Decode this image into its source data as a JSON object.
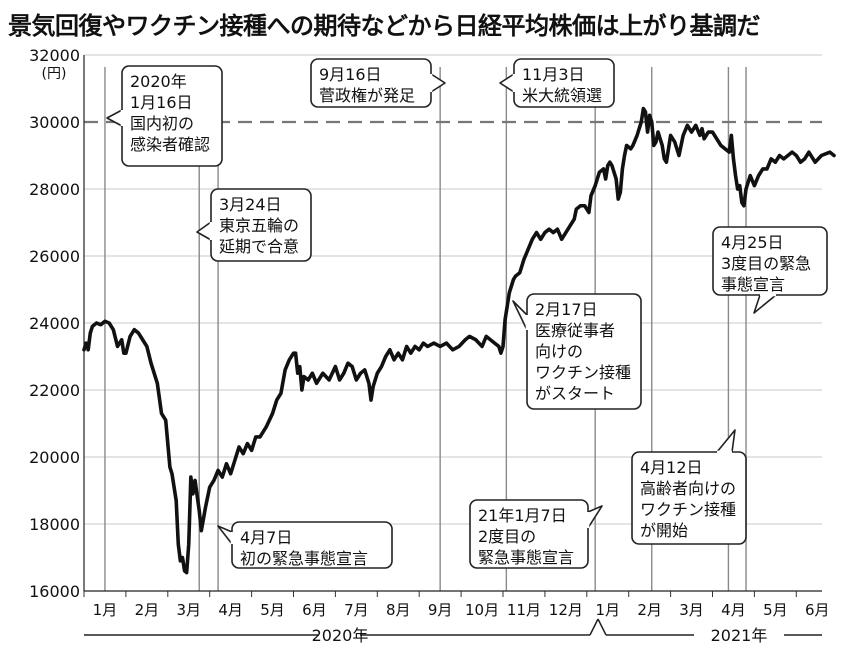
{
  "title": "景気回復やワクチン接種への期待などから日経平均株価は上がり基調だ",
  "chart_data": {
    "type": "line",
    "ylabel": "(円)",
    "ylim": [
      16000,
      32000
    ],
    "yticks": [
      16000,
      18000,
      20000,
      22000,
      24000,
      26000,
      28000,
      30000,
      32000
    ],
    "reference_line": 30000,
    "month_labels": [
      "1月",
      "2月",
      "3月",
      "4月",
      "5月",
      "6月",
      "7月",
      "8月",
      "9月",
      "10月",
      "11月",
      "12月",
      "1月",
      "2月",
      "3月",
      "4月",
      "5月",
      "6月"
    ],
    "year_labels": [
      "2020年",
      "2021年"
    ],
    "series": [
      {
        "values": [
          [
            0,
            23200
          ],
          [
            0.05,
            23400
          ],
          [
            0.1,
            23200
          ],
          [
            0.15,
            23700
          ],
          [
            0.2,
            23900
          ],
          [
            0.3,
            24000
          ],
          [
            0.4,
            23950
          ],
          [
            0.5,
            24050
          ],
          [
            0.6,
            24000
          ],
          [
            0.7,
            23800
          ],
          [
            0.8,
            23300
          ],
          [
            0.9,
            23500
          ],
          [
            0.95,
            23100
          ],
          [
            1.0,
            23100
          ],
          [
            1.1,
            23600
          ],
          [
            1.2,
            23800
          ],
          [
            1.3,
            23700
          ],
          [
            1.4,
            23500
          ],
          [
            1.5,
            23300
          ],
          [
            1.6,
            22800
          ],
          [
            1.75,
            22200
          ],
          [
            1.85,
            21300
          ],
          [
            1.95,
            21100
          ],
          [
            2.05,
            19700
          ],
          [
            2.1,
            19500
          ],
          [
            2.2,
            18700
          ],
          [
            2.25,
            17400
          ],
          [
            2.3,
            16900
          ],
          [
            2.35,
            17000
          ],
          [
            2.4,
            16600
          ],
          [
            2.45,
            16550
          ],
          [
            2.5,
            17400
          ],
          [
            2.55,
            19400
          ],
          [
            2.6,
            18900
          ],
          [
            2.65,
            19300
          ],
          [
            2.75,
            18400
          ],
          [
            2.8,
            17800
          ],
          [
            2.9,
            18500
          ],
          [
            3.0,
            19100
          ],
          [
            3.1,
            19300
          ],
          [
            3.2,
            19600
          ],
          [
            3.3,
            19400
          ],
          [
            3.4,
            19800
          ],
          [
            3.5,
            19500
          ],
          [
            3.6,
            19900
          ],
          [
            3.7,
            20300
          ],
          [
            3.8,
            20100
          ],
          [
            3.9,
            20400
          ],
          [
            4.0,
            20200
          ],
          [
            4.1,
            20600
          ],
          [
            4.2,
            20600
          ],
          [
            4.35,
            20900
          ],
          [
            4.5,
            21300
          ],
          [
            4.6,
            21700
          ],
          [
            4.7,
            21900
          ],
          [
            4.8,
            22600
          ],
          [
            4.9,
            22900
          ],
          [
            5.0,
            23100
          ],
          [
            5.05,
            23100
          ],
          [
            5.1,
            22500
          ],
          [
            5.15,
            22700
          ],
          [
            5.2,
            22000
          ],
          [
            5.25,
            22400
          ],
          [
            5.35,
            22300
          ],
          [
            5.45,
            22500
          ],
          [
            5.55,
            22200
          ],
          [
            5.7,
            22500
          ],
          [
            5.85,
            22300
          ],
          [
            6.0,
            22700
          ],
          [
            6.1,
            22300
          ],
          [
            6.2,
            22500
          ],
          [
            6.3,
            22800
          ],
          [
            6.4,
            22700
          ],
          [
            6.5,
            22300
          ],
          [
            6.6,
            22500
          ],
          [
            6.7,
            22600
          ],
          [
            6.8,
            22200
          ],
          [
            6.85,
            21700
          ],
          [
            6.9,
            22100
          ],
          [
            7.0,
            22500
          ],
          [
            7.1,
            22700
          ],
          [
            7.2,
            23000
          ],
          [
            7.3,
            23200
          ],
          [
            7.4,
            22900
          ],
          [
            7.5,
            23100
          ],
          [
            7.6,
            22900
          ],
          [
            7.7,
            23300
          ],
          [
            7.8,
            23100
          ],
          [
            7.9,
            23300
          ],
          [
            8.0,
            23200
          ],
          [
            8.1,
            23400
          ],
          [
            8.2,
            23300
          ],
          [
            8.35,
            23400
          ],
          [
            8.5,
            23300
          ],
          [
            8.65,
            23400
          ],
          [
            8.8,
            23200
          ],
          [
            8.95,
            23300
          ],
          [
            9.1,
            23500
          ],
          [
            9.2,
            23600
          ],
          [
            9.35,
            23500
          ],
          [
            9.5,
            23300
          ],
          [
            9.6,
            23600
          ],
          [
            9.7,
            23500
          ],
          [
            9.8,
            23400
          ],
          [
            9.9,
            23300
          ],
          [
            9.95,
            23100
          ],
          [
            10.0,
            23300
          ],
          [
            10.05,
            24100
          ],
          [
            10.15,
            24900
          ],
          [
            10.25,
            25300
          ],
          [
            10.3,
            25400
          ],
          [
            10.4,
            25500
          ],
          [
            10.5,
            25900
          ],
          [
            10.6,
            26200
          ],
          [
            10.7,
            26500
          ],
          [
            10.8,
            26700
          ],
          [
            10.9,
            26500
          ],
          [
            11.0,
            26700
          ],
          [
            11.1,
            26800
          ],
          [
            11.2,
            26700
          ],
          [
            11.3,
            26800
          ],
          [
            11.4,
            26500
          ],
          [
            11.5,
            26700
          ],
          [
            11.6,
            26900
          ],
          [
            11.7,
            27100
          ],
          [
            11.75,
            27400
          ],
          [
            11.85,
            27500
          ],
          [
            11.95,
            27500
          ],
          [
            12.05,
            27300
          ],
          [
            12.1,
            27800
          ],
          [
            12.2,
            28100
          ],
          [
            12.3,
            28500
          ],
          [
            12.4,
            28600
          ],
          [
            12.45,
            28300
          ],
          [
            12.5,
            28700
          ],
          [
            12.55,
            28800
          ],
          [
            12.6,
            28700
          ],
          [
            12.7,
            28300
          ],
          [
            12.75,
            27700
          ],
          [
            12.8,
            27900
          ],
          [
            12.85,
            28600
          ],
          [
            12.9,
            29000
          ],
          [
            12.95,
            29300
          ],
          [
            13.05,
            29200
          ],
          [
            13.1,
            29300
          ],
          [
            13.2,
            29600
          ],
          [
            13.3,
            30000
          ],
          [
            13.35,
            30400
          ],
          [
            13.4,
            30300
          ],
          [
            13.45,
            29700
          ],
          [
            13.5,
            30200
          ],
          [
            13.55,
            30000
          ],
          [
            13.6,
            29300
          ],
          [
            13.65,
            29400
          ],
          [
            13.7,
            29700
          ],
          [
            13.8,
            29300
          ],
          [
            13.85,
            28900
          ],
          [
            13.9,
            28800
          ],
          [
            13.95,
            29200
          ],
          [
            14.0,
            29600
          ],
          [
            14.1,
            29400
          ],
          [
            14.2,
            29000
          ],
          [
            14.3,
            29600
          ],
          [
            14.4,
            29900
          ],
          [
            14.5,
            29700
          ],
          [
            14.6,
            29900
          ],
          [
            14.7,
            29600
          ],
          [
            14.75,
            29800
          ],
          [
            14.8,
            29500
          ],
          [
            14.9,
            29700
          ],
          [
            15.0,
            29700
          ],
          [
            15.1,
            29500
          ],
          [
            15.2,
            29300
          ],
          [
            15.3,
            29200
          ],
          [
            15.4,
            29100
          ],
          [
            15.45,
            29600
          ],
          [
            15.5,
            28900
          ],
          [
            15.55,
            28400
          ],
          [
            15.6,
            28000
          ],
          [
            15.65,
            28100
          ],
          [
            15.7,
            27600
          ],
          [
            15.75,
            27500
          ],
          [
            15.8,
            28000
          ],
          [
            15.9,
            28400
          ],
          [
            16.0,
            28100
          ],
          [
            16.1,
            28400
          ],
          [
            16.2,
            28600
          ],
          [
            16.3,
            28600
          ],
          [
            16.4,
            28900
          ],
          [
            16.5,
            28800
          ],
          [
            16.6,
            29000
          ],
          [
            16.7,
            28900
          ],
          [
            16.8,
            29000
          ],
          [
            16.9,
            29100
          ],
          [
            17.0,
            29000
          ],
          [
            17.05,
            28900
          ],
          [
            17.1,
            28800
          ],
          [
            17.2,
            28900
          ],
          [
            17.3,
            29100
          ],
          [
            17.45,
            28800
          ],
          [
            17.6,
            29000
          ],
          [
            17.8,
            29100
          ],
          [
            17.9,
            29000
          ]
        ]
      }
    ],
    "annotations": [
      {
        "date_label": "2020年",
        "lines": [
          "1月16日",
          "国内初の",
          "感染者確認"
        ]
      },
      {
        "date_label": "3月24日",
        "lines": [
          "東京五輪の",
          "延期で合意"
        ]
      },
      {
        "date_label": "4月7日",
        "lines": [
          "初の緊急事態宣言"
        ]
      },
      {
        "date_label": "9月16日",
        "lines": [
          "菅政権が発足"
        ]
      },
      {
        "date_label": "11月3日",
        "lines": [
          "米大統領選"
        ]
      },
      {
        "date_label": "21年1月7日",
        "lines": [
          "2度目の",
          "緊急事態宣言"
        ]
      },
      {
        "date_label": "2月17日",
        "lines": [
          "医療従事者",
          "向けの",
          "ワクチン接種",
          "がスタート"
        ]
      },
      {
        "date_label": "4月12日",
        "lines": [
          "高齢者向けの",
          "ワクチン接種",
          "が開始"
        ]
      },
      {
        "date_label": "4月25日",
        "lines": [
          "3度目の緊急",
          "事態宣言"
        ]
      }
    ]
  }
}
